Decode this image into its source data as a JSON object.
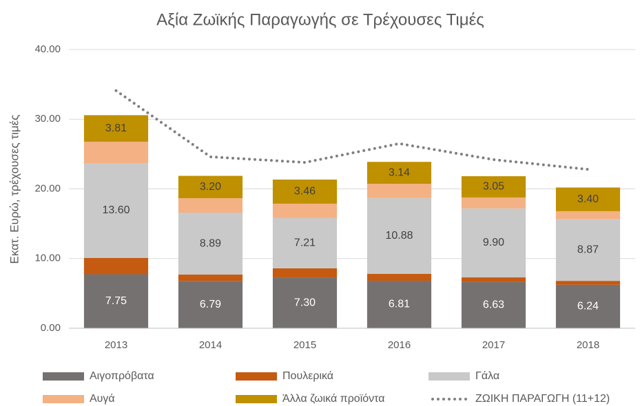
{
  "chart_data": {
    "type": "bar",
    "stacked": true,
    "title": "Αξία Ζωϊκής Παραγωγής σε Τρέχουσες Τιμές",
    "ylabel": "Εκατ. Ευρώ, τρέχουσες τιμές",
    "categories": [
      "2013",
      "2014",
      "2015",
      "2016",
      "2017",
      "2018"
    ],
    "ylim": [
      0,
      40
    ],
    "yticks": [
      {
        "value": 0,
        "label": "0.00"
      },
      {
        "value": 10,
        "label": "10.00"
      },
      {
        "value": 20,
        "label": "20.00"
      },
      {
        "value": 30,
        "label": "30.00"
      },
      {
        "value": 40,
        "label": "40.00"
      }
    ],
    "grid": true,
    "series": [
      {
        "name": "Αιγοπρόβατα",
        "color": "#767171",
        "values": [
          7.75,
          6.79,
          7.3,
          6.81,
          6.63,
          6.24
        ],
        "value_labels": [
          "7.75",
          "6.79",
          "7.30",
          "6.81",
          "6.63",
          "6.24"
        ],
        "label_color": "#ffffff"
      },
      {
        "name": "Πουλερικά",
        "color": "#C55A11",
        "values": [
          2.35,
          0.91,
          1.3,
          0.99,
          0.67,
          0.56
        ]
      },
      {
        "name": "Γάλα",
        "color": "#C9C9C9",
        "values": [
          13.6,
          8.89,
          7.21,
          10.88,
          9.9,
          8.87
        ],
        "value_labels": [
          "13.60",
          "8.89",
          "7.21",
          "10.88",
          "9.90",
          "8.87"
        ],
        "label_color": "#404040"
      },
      {
        "name": "Αυγά",
        "color": "#F4B183",
        "values": [
          3.07,
          2.08,
          2.07,
          2.06,
          1.57,
          1.13
        ]
      },
      {
        "name": "Άλλα ζωικά προϊόντα",
        "color": "#BF9000",
        "values": [
          3.81,
          3.2,
          3.46,
          3.14,
          3.05,
          3.4
        ],
        "value_labels": [
          "3.81",
          "3.20",
          "3.46",
          "3.14",
          "3.05",
          "3.40"
        ],
        "label_color": "#404040"
      },
      {
        "name": "ΖΩΙΚΗ ΠΑΡΑΓΩΓΗ (11+12)",
        "type": "line",
        "color": "#7F7F7F",
        "values": [
          34.1,
          24.6,
          23.8,
          26.5,
          24.2,
          22.8
        ]
      }
    ]
  }
}
